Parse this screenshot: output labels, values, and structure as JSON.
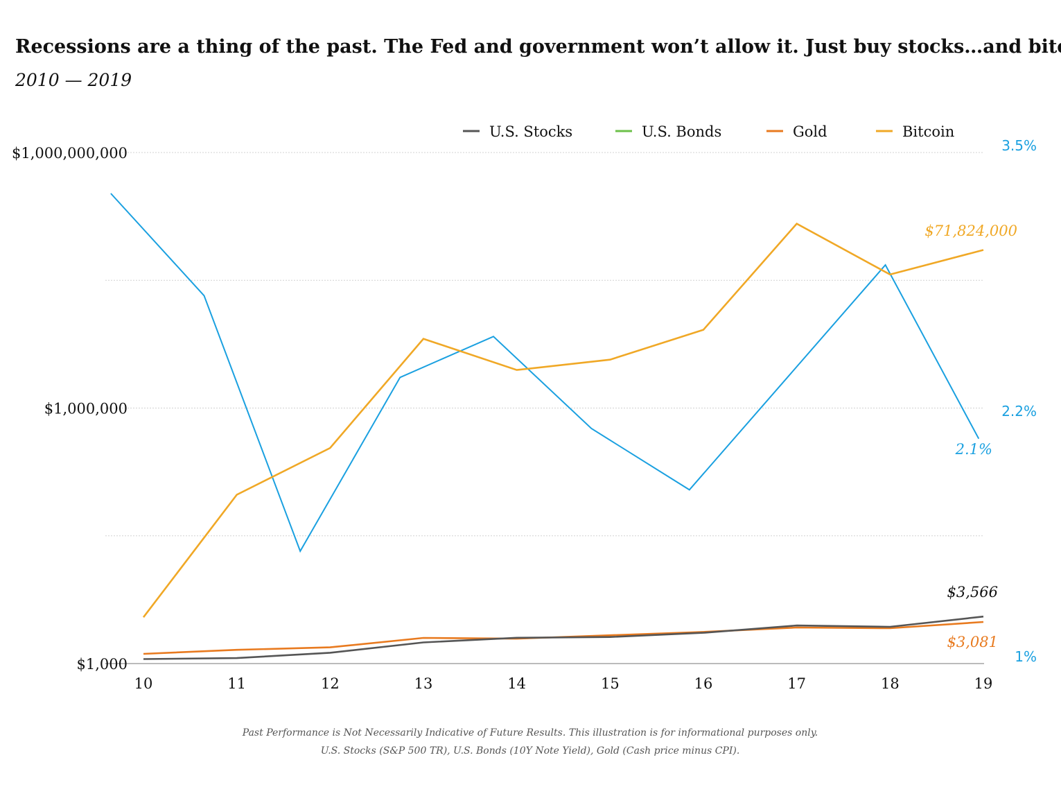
{
  "chart_data": {
    "type": "line",
    "title": "Recessions are a thing of the past. The Fed and government won’t allow it. Just buy stocks…and bitcoin.",
    "subtitle": "2010 — 2019",
    "x": [
      "10",
      "11",
      "12",
      "13",
      "14",
      "15",
      "16",
      "17",
      "18",
      "19"
    ],
    "y_left": {
      "scale": "log",
      "range": [
        1000,
        1000000000
      ],
      "ticks": [
        1000,
        1000000,
        1000000000
      ],
      "tick_labels": [
        "$1,000",
        "$1,000,000",
        "$1,000,000,000"
      ]
    },
    "y_right": {
      "range": [
        1,
        3.5
      ],
      "tick_labels": [
        "1%",
        "2.2%",
        "3.5%"
      ],
      "ticks": [
        1,
        2.2,
        3.5
      ]
    },
    "legend": {
      "placement": "top-right",
      "entries": [
        "U.S. Stocks",
        "U.S. Bonds",
        "Gold",
        "Bitcoin"
      ]
    },
    "grid": true,
    "series": [
      {
        "name": "U.S. Stocks",
        "axis": "left",
        "color": "#555555",
        "x": [
          10,
          11,
          12,
          13,
          14,
          15,
          16,
          17,
          18,
          19
        ],
        "values": [
          1130,
          1160,
          1340,
          1770,
          2010,
          2050,
          2300,
          2800,
          2700,
          3566
        ],
        "end_label": "$3,566"
      },
      {
        "name": "U.S. Bonds",
        "axis": "right",
        "color": "#1aa0e0",
        "x": [
          9.65,
          10.65,
          11.68,
          12.75,
          13.75,
          14.8,
          15.85,
          16.9,
          17.95,
          18.95
        ],
        "values": [
          3.3,
          2.8,
          1.55,
          2.4,
          2.6,
          2.15,
          1.85,
          2.4,
          2.95,
          2.1
        ],
        "end_label": "2.1%"
      },
      {
        "name": "Gold",
        "axis": "left",
        "color": "#e87a1f",
        "x": [
          10,
          11,
          12,
          13,
          14,
          15,
          16,
          17,
          18,
          19
        ],
        "values": [
          1300,
          1450,
          1550,
          2000,
          1960,
          2150,
          2350,
          2650,
          2600,
          3081
        ],
        "end_label": "$3,081"
      },
      {
        "name": "Bitcoin",
        "axis": "left",
        "color": "#f0a826",
        "x": [
          10,
          11,
          12,
          13,
          14,
          15,
          16,
          17,
          18,
          19
        ],
        "values": [
          3500,
          96000,
          340000,
          6500000,
          2800000,
          3700000,
          8300000,
          146000000,
          37000000,
          71824000
        ],
        "end_label": "$71,824,000"
      }
    ]
  },
  "footnote": {
    "line1": "Past Performance is Not Necessarily Indicative of Future Results. This illustration is for informational purposes only.",
    "line2": "U.S. Stocks (S&P 500 TR), U.S. Bonds (10Y Note Yield), Gold (Cash price minus CPI)."
  }
}
